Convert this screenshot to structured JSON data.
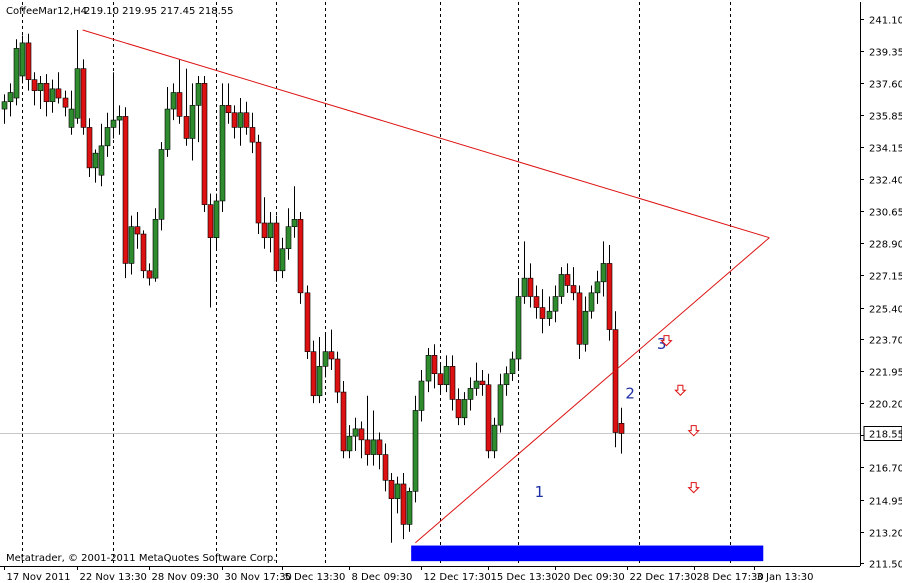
{
  "header": {
    "symbol": "CoffeeMar12,H4",
    "ohlc": "219.10 219.95 217.45 218.55"
  },
  "footer": {
    "copyright": "Metatrader, © 2001-2011 MetaQuotes Software Corp."
  },
  "colors": {
    "background": "#ffffff",
    "bull": "#2e8b2e",
    "bear": "#dd1111",
    "trendline": "#dd1111",
    "support_zone": "#0000ff",
    "label": "#1f2fa6"
  },
  "chart_data": {
    "type": "candlestick",
    "title": "",
    "xlabel": "",
    "ylabel": "",
    "ylim": [
      211.0,
      241.8
    ],
    "grid": "vertical dotted",
    "current_price": "218.55",
    "price_ticks": [
      "241.10",
      "239.35",
      "237.60",
      "235.85",
      "234.15",
      "232.40",
      "230.65",
      "228.90",
      "227.15",
      "225.40",
      "223.70",
      "221.95",
      "220.20",
      "218.45",
      "216.70",
      "214.95",
      "213.20",
      "211.50"
    ],
    "time_ticks": [
      "17 Nov 2011",
      "22 Nov 13:30",
      "28 Nov 09:30",
      "30 Nov 17:30",
      "5 Dec 13:30",
      "8 Dec 09:30",
      "12 Dec 17:30",
      "15 Dec 13:30",
      "20 Dec 09:30",
      "22 Dec 17:30",
      "28 Dec 17:30",
      "3 Jan 13:30"
    ],
    "time_tick_bars": [
      0,
      12,
      24,
      36,
      46,
      57,
      69,
      80,
      91,
      103,
      114,
      124
    ],
    "separator_bars": [
      3,
      18,
      35,
      45,
      53,
      72,
      85,
      105,
      120
    ],
    "candles": [
      {
        "o": 236.2,
        "h": 237.0,
        "l": 235.4,
        "c": 236.6
      },
      {
        "o": 236.6,
        "h": 237.6,
        "l": 235.8,
        "c": 237.1
      },
      {
        "o": 236.8,
        "h": 240.0,
        "l": 236.4,
        "c": 239.5
      },
      {
        "o": 238.0,
        "h": 240.2,
        "l": 237.6,
        "c": 239.8
      },
      {
        "o": 239.8,
        "h": 240.3,
        "l": 237.2,
        "c": 237.8
      },
      {
        "o": 237.8,
        "h": 238.2,
        "l": 236.4,
        "c": 237.2
      },
      {
        "o": 237.2,
        "h": 238.0,
        "l": 236.2,
        "c": 237.6
      },
      {
        "o": 237.6,
        "h": 238.1,
        "l": 235.8,
        "c": 236.6
      },
      {
        "o": 236.6,
        "h": 237.8,
        "l": 236.0,
        "c": 237.3
      },
      {
        "o": 237.3,
        "h": 238.2,
        "l": 236.5,
        "c": 236.8
      },
      {
        "o": 236.8,
        "h": 237.2,
        "l": 235.8,
        "c": 236.3
      },
      {
        "o": 235.2,
        "h": 237.2,
        "l": 234.8,
        "c": 236.2
      },
      {
        "o": 235.7,
        "h": 240.5,
        "l": 235.4,
        "c": 238.4
      },
      {
        "o": 238.4,
        "h": 238.9,
        "l": 234.8,
        "c": 235.2
      },
      {
        "o": 235.2,
        "h": 235.7,
        "l": 232.5,
        "c": 233.0
      },
      {
        "o": 233.0,
        "h": 234.0,
        "l": 232.2,
        "c": 233.8
      },
      {
        "o": 232.6,
        "h": 235.4,
        "l": 232.0,
        "c": 234.2
      },
      {
        "o": 234.2,
        "h": 236.0,
        "l": 233.6,
        "c": 235.2
      },
      {
        "o": 235.2,
        "h": 238.2,
        "l": 234.6,
        "c": 235.6
      },
      {
        "o": 235.6,
        "h": 236.4,
        "l": 234.8,
        "c": 235.8
      },
      {
        "o": 235.8,
        "h": 236.3,
        "l": 227.0,
        "c": 227.8
      },
      {
        "o": 227.8,
        "h": 230.4,
        "l": 227.2,
        "c": 229.8
      },
      {
        "o": 229.8,
        "h": 230.6,
        "l": 228.6,
        "c": 229.4
      },
      {
        "o": 229.4,
        "h": 229.6,
        "l": 227.0,
        "c": 227.4
      },
      {
        "o": 227.4,
        "h": 227.8,
        "l": 226.6,
        "c": 227.0
      },
      {
        "o": 227.0,
        "h": 230.8,
        "l": 226.8,
        "c": 230.2
      },
      {
        "o": 230.2,
        "h": 234.4,
        "l": 229.6,
        "c": 234.0
      },
      {
        "o": 234.0,
        "h": 237.4,
        "l": 233.6,
        "c": 236.2
      },
      {
        "o": 236.2,
        "h": 237.6,
        "l": 235.6,
        "c": 237.1
      },
      {
        "o": 237.1,
        "h": 238.9,
        "l": 235.4,
        "c": 235.8
      },
      {
        "o": 235.8,
        "h": 238.4,
        "l": 234.2,
        "c": 234.6
      },
      {
        "o": 234.6,
        "h": 237.6,
        "l": 233.4,
        "c": 236.4
      },
      {
        "o": 236.4,
        "h": 238.0,
        "l": 234.4,
        "c": 237.6
      },
      {
        "o": 237.6,
        "h": 238.0,
        "l": 230.6,
        "c": 231.0
      },
      {
        "o": 231.0,
        "h": 231.6,
        "l": 225.4,
        "c": 229.2
      },
      {
        "o": 229.2,
        "h": 231.6,
        "l": 228.6,
        "c": 231.2
      },
      {
        "o": 231.2,
        "h": 237.6,
        "l": 230.6,
        "c": 236.4
      },
      {
        "o": 236.4,
        "h": 237.6,
        "l": 235.4,
        "c": 236.0
      },
      {
        "o": 236.0,
        "h": 236.4,
        "l": 234.6,
        "c": 235.2
      },
      {
        "o": 235.2,
        "h": 236.8,
        "l": 234.2,
        "c": 236.0
      },
      {
        "o": 236.0,
        "h": 236.6,
        "l": 234.8,
        "c": 235.2
      },
      {
        "o": 235.2,
        "h": 236.0,
        "l": 233.8,
        "c": 234.4
      },
      {
        "o": 234.4,
        "h": 234.8,
        "l": 229.4,
        "c": 230.0
      },
      {
        "o": 230.0,
        "h": 231.4,
        "l": 228.6,
        "c": 229.2
      },
      {
        "o": 229.2,
        "h": 230.6,
        "l": 228.4,
        "c": 230.0
      },
      {
        "o": 230.0,
        "h": 230.4,
        "l": 226.8,
        "c": 227.4
      },
      {
        "o": 227.4,
        "h": 229.2,
        "l": 227.0,
        "c": 228.6
      },
      {
        "o": 228.6,
        "h": 230.8,
        "l": 228.0,
        "c": 229.8
      },
      {
        "o": 229.8,
        "h": 232.0,
        "l": 229.2,
        "c": 230.2
      },
      {
        "o": 230.2,
        "h": 230.6,
        "l": 225.6,
        "c": 226.2
      },
      {
        "o": 226.2,
        "h": 226.6,
        "l": 222.6,
        "c": 223.0
      },
      {
        "o": 223.0,
        "h": 223.6,
        "l": 220.2,
        "c": 220.6
      },
      {
        "o": 220.6,
        "h": 223.8,
        "l": 220.2,
        "c": 222.2
      },
      {
        "o": 222.2,
        "h": 224.0,
        "l": 221.6,
        "c": 223.0
      },
      {
        "o": 223.0,
        "h": 224.2,
        "l": 222.0,
        "c": 222.6
      },
      {
        "o": 222.6,
        "h": 223.0,
        "l": 220.2,
        "c": 220.8
      },
      {
        "o": 220.8,
        "h": 221.4,
        "l": 217.2,
        "c": 217.6
      },
      {
        "o": 217.6,
        "h": 219.0,
        "l": 217.2,
        "c": 218.4
      },
      {
        "o": 218.4,
        "h": 219.4,
        "l": 217.6,
        "c": 218.8
      },
      {
        "o": 218.8,
        "h": 219.2,
        "l": 217.2,
        "c": 218.2
      },
      {
        "o": 218.2,
        "h": 220.6,
        "l": 216.8,
        "c": 217.4
      },
      {
        "o": 217.4,
        "h": 219.8,
        "l": 216.8,
        "c": 218.2
      },
      {
        "o": 218.2,
        "h": 218.6,
        "l": 216.6,
        "c": 217.4
      },
      {
        "o": 217.4,
        "h": 218.0,
        "l": 215.4,
        "c": 216.0
      },
      {
        "o": 216.0,
        "h": 216.4,
        "l": 212.6,
        "c": 215.0
      },
      {
        "o": 215.0,
        "h": 216.2,
        "l": 214.2,
        "c": 215.8
      },
      {
        "o": 215.8,
        "h": 216.4,
        "l": 212.8,
        "c": 213.6
      },
      {
        "o": 213.6,
        "h": 215.6,
        "l": 213.2,
        "c": 215.4
      },
      {
        "o": 215.4,
        "h": 220.6,
        "l": 214.8,
        "c": 219.8
      },
      {
        "o": 219.8,
        "h": 222.0,
        "l": 219.2,
        "c": 221.4
      },
      {
        "o": 221.4,
        "h": 223.2,
        "l": 220.8,
        "c": 222.8
      },
      {
        "o": 222.8,
        "h": 223.4,
        "l": 221.0,
        "c": 221.8
      },
      {
        "o": 221.8,
        "h": 222.4,
        "l": 220.8,
        "c": 221.2
      },
      {
        "o": 221.2,
        "h": 222.8,
        "l": 220.8,
        "c": 222.2
      },
      {
        "o": 222.2,
        "h": 222.8,
        "l": 219.8,
        "c": 220.4
      },
      {
        "o": 220.4,
        "h": 221.0,
        "l": 219.0,
        "c": 219.4
      },
      {
        "o": 219.4,
        "h": 220.8,
        "l": 219.0,
        "c": 220.4
      },
      {
        "o": 220.4,
        "h": 221.6,
        "l": 219.8,
        "c": 221.0
      },
      {
        "o": 221.0,
        "h": 222.4,
        "l": 220.6,
        "c": 221.4
      },
      {
        "o": 221.4,
        "h": 222.0,
        "l": 220.6,
        "c": 221.2
      },
      {
        "o": 221.2,
        "h": 221.8,
        "l": 217.2,
        "c": 217.6
      },
      {
        "o": 217.6,
        "h": 219.4,
        "l": 217.2,
        "c": 219.0
      },
      {
        "o": 219.0,
        "h": 221.8,
        "l": 218.6,
        "c": 221.2
      },
      {
        "o": 221.2,
        "h": 222.2,
        "l": 220.6,
        "c": 221.8
      },
      {
        "o": 221.8,
        "h": 223.0,
        "l": 221.4,
        "c": 222.6
      },
      {
        "o": 222.6,
        "h": 227.0,
        "l": 222.0,
        "c": 226.0
      },
      {
        "o": 226.0,
        "h": 229.0,
        "l": 225.6,
        "c": 227.0
      },
      {
        "o": 227.0,
        "h": 227.8,
        "l": 225.4,
        "c": 226.0
      },
      {
        "o": 226.0,
        "h": 226.6,
        "l": 224.8,
        "c": 225.4
      },
      {
        "o": 225.4,
        "h": 226.4,
        "l": 224.0,
        "c": 224.8
      },
      {
        "o": 224.8,
        "h": 226.0,
        "l": 224.4,
        "c": 225.2
      },
      {
        "o": 225.2,
        "h": 226.6,
        "l": 224.6,
        "c": 226.0
      },
      {
        "o": 226.0,
        "h": 227.6,
        "l": 225.6,
        "c": 227.2
      },
      {
        "o": 227.2,
        "h": 227.8,
        "l": 226.2,
        "c": 226.6
      },
      {
        "o": 226.6,
        "h": 227.6,
        "l": 225.8,
        "c": 226.2
      },
      {
        "o": 226.2,
        "h": 226.6,
        "l": 222.6,
        "c": 223.4
      },
      {
        "o": 223.4,
        "h": 226.0,
        "l": 223.0,
        "c": 225.2
      },
      {
        "o": 225.2,
        "h": 226.6,
        "l": 224.8,
        "c": 226.2
      },
      {
        "o": 226.2,
        "h": 227.4,
        "l": 225.6,
        "c": 226.8
      },
      {
        "o": 226.8,
        "h": 229.0,
        "l": 226.0,
        "c": 227.8
      },
      {
        "o": 227.8,
        "h": 228.8,
        "l": 223.6,
        "c": 224.2
      },
      {
        "o": 224.2,
        "h": 225.2,
        "l": 217.8,
        "c": 218.6
      },
      {
        "o": 219.1,
        "h": 219.95,
        "l": 217.45,
        "c": 218.55
      }
    ],
    "trendlines": [
      {
        "name": "upper",
        "from": {
          "bar": 13,
          "price": 240.5
        },
        "to": {
          "bar": 126.5,
          "price": 229.2
        }
      },
      {
        "name": "lower",
        "from": {
          "bar": 68,
          "price": 212.6
        },
        "to": {
          "bar": 126.5,
          "price": 229.2
        }
      }
    ],
    "support_zone": {
      "price_low": 211.6,
      "price_high": 212.45,
      "bar_from": 67.3,
      "bar_to": 125.5
    },
    "wave_labels": [
      {
        "text": "1",
        "bar": 88.5,
        "price": 215.1
      },
      {
        "text": "2",
        "bar": 103.5,
        "price": 220.45
      },
      {
        "text": "3",
        "bar": 108.7,
        "price": 223.15
      }
    ],
    "arrows": [
      {
        "bar": 109.5,
        "price": 223.6
      },
      {
        "bar": 111.8,
        "price": 220.9
      },
      {
        "bar": 114.0,
        "price": 218.7
      },
      {
        "bar": 114.0,
        "price": 215.6
      }
    ]
  }
}
